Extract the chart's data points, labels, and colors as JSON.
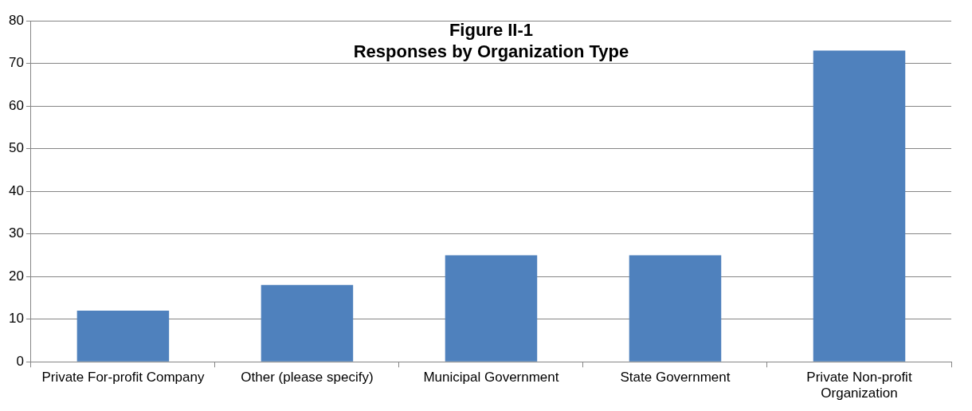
{
  "chart_data": {
    "type": "bar",
    "title": "Figure II-1\nResponses by Organization Type",
    "categories": [
      "Private For-profit Company",
      "Other (please specify)",
      "Municipal Government",
      "State Government",
      "Private Non-profit Organization"
    ],
    "values": [
      12,
      18,
      25,
      25,
      73
    ],
    "color": "#4f81bd",
    "ylim": [
      0,
      80
    ],
    "yticks": [
      0,
      10,
      20,
      30,
      40,
      50,
      60,
      70,
      80
    ],
    "grid": "y",
    "legend": false
  }
}
